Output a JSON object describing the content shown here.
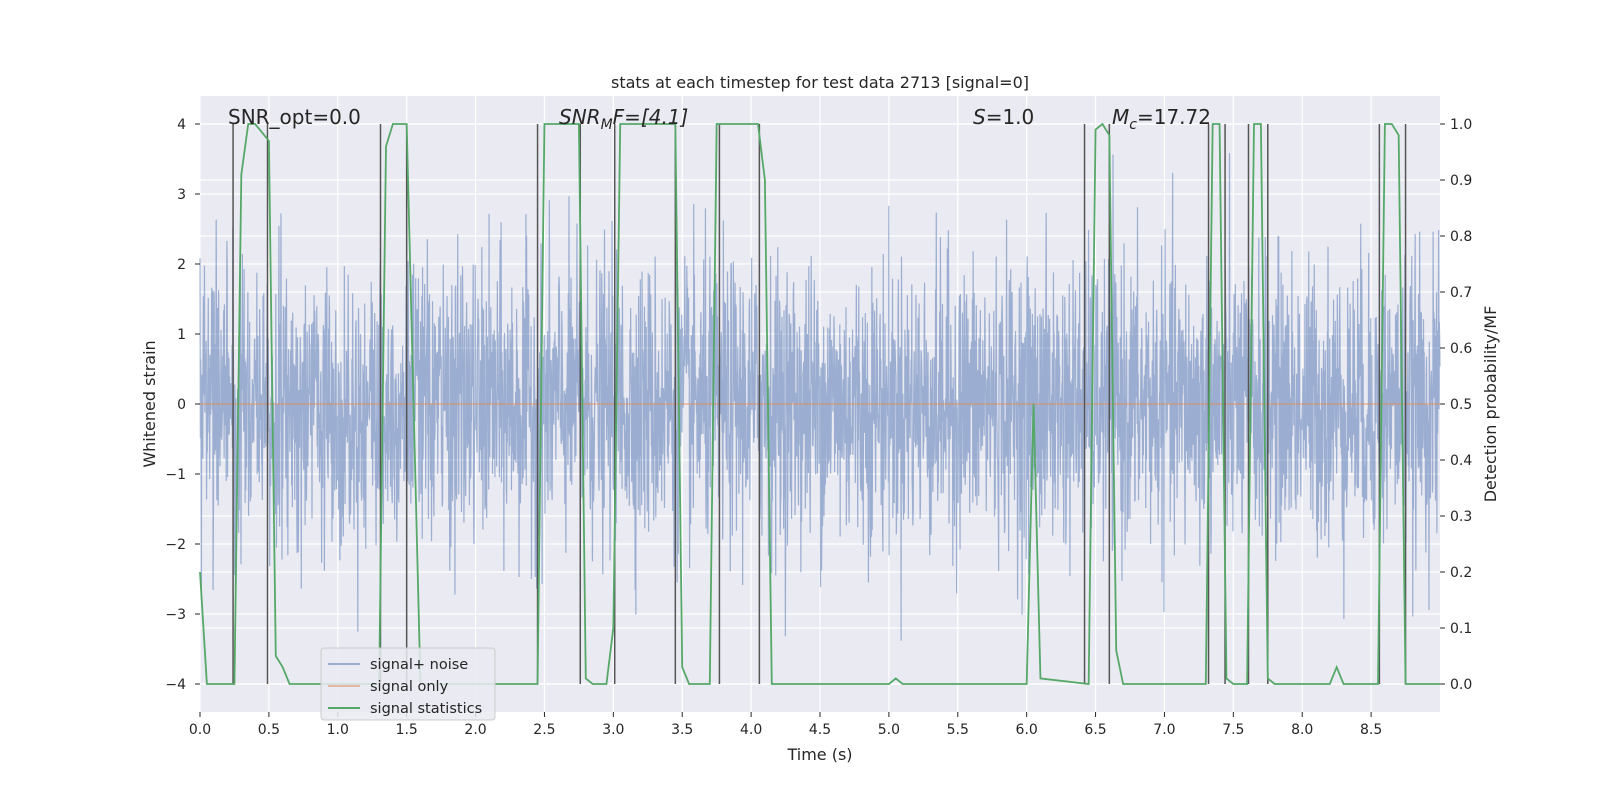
{
  "chart_data": {
    "type": "line",
    "title": "stats at each timestep for test data 2713 [signal=0]",
    "xlabel": "Time (s)",
    "ylabel": "Whitened strain",
    "y2label": "Detection probability/MF",
    "xlim": [
      0.0,
      9.0
    ],
    "ylim": [
      -4.4,
      4.4
    ],
    "y2lim": [
      -0.05,
      1.05
    ],
    "x_ticks": [
      0.0,
      0.5,
      1.0,
      1.5,
      2.0,
      2.5,
      3.0,
      3.5,
      4.0,
      4.5,
      5.0,
      5.5,
      6.0,
      6.5,
      7.0,
      7.5,
      8.0,
      8.5
    ],
    "x_tick_labels": [
      "0.0",
      "0.5",
      "1.0",
      "1.5",
      "2.0",
      "2.5",
      "3.0",
      "3.5",
      "4.0",
      "4.5",
      "5.0",
      "5.5",
      "6.0",
      "6.5",
      "7.0",
      "7.5",
      "8.0",
      "8.5"
    ],
    "y_ticks": [
      -4,
      -3,
      -2,
      -1,
      0,
      1,
      2,
      3,
      4
    ],
    "y_tick_labels": [
      "−4",
      "−3",
      "−2",
      "−1",
      "0",
      "1",
      "2",
      "3",
      "4"
    ],
    "y2_ticks": [
      0.0,
      0.1,
      0.2,
      0.3,
      0.4,
      0.5,
      0.6,
      0.7,
      0.8,
      0.9,
      1.0
    ],
    "y2_tick_labels": [
      "0.0",
      "0.1",
      "0.2",
      "0.3",
      "0.4",
      "0.5",
      "0.6",
      "0.7",
      "0.8",
      "0.9",
      "1.0"
    ],
    "grid": true,
    "legend_position": "lower-left",
    "annotations": {
      "snr_opt": "SNR_opt=0.0",
      "snr_mf_main": "SNR",
      "snr_mf_sub": "M",
      "snr_mf_rest": "F=[4.1]",
      "s_main": "S",
      "s_rest": "=1.0",
      "mc_main": "M",
      "mc_sub": "c",
      "mc_rest": "=17.72"
    },
    "series": [
      {
        "name": "signal+ noise",
        "color": "#4c72b0",
        "axis": "left",
        "noise_std": 1.0,
        "x_range": [
          0.0,
          9.0
        ]
      },
      {
        "name": "signal only",
        "color": "#dd8452",
        "axis": "left",
        "x": [
          0.0,
          9.0
        ],
        "y": [
          0.0,
          0.0
        ]
      },
      {
        "name": "signal statistics",
        "color": "#55a868",
        "axis": "right",
        "x": [
          0.0,
          0.05,
          0.25,
          0.3,
          0.35,
          0.4,
          0.5,
          0.55,
          0.6,
          0.65,
          0.7,
          0.75,
          1.3,
          1.35,
          1.4,
          1.5,
          1.6,
          1.65,
          2.45,
          2.5,
          2.75,
          2.8,
          2.85,
          2.95,
          3.0,
          3.05,
          3.1,
          3.45,
          3.5,
          3.55,
          3.6,
          3.7,
          3.75,
          3.8,
          4.05,
          4.1,
          4.15,
          4.2,
          5.0,
          5.05,
          5.1,
          5.5,
          5.7,
          6.0,
          6.05,
          6.1,
          6.45,
          6.5,
          6.55,
          6.6,
          6.65,
          6.7,
          7.3,
          7.35,
          7.4,
          7.45,
          7.5,
          7.6,
          7.65,
          7.7,
          7.75,
          7.8,
          8.15,
          8.2,
          8.25,
          8.3,
          8.4,
          8.55,
          8.6,
          8.65,
          8.7,
          8.75,
          8.8,
          8.9,
          9.0
        ],
        "y": [
          0.2,
          0.0,
          0.0,
          0.91,
          1.0,
          1.0,
          0.97,
          0.05,
          0.03,
          0.0,
          0.0,
          0.0,
          0.0,
          0.96,
          1.0,
          1.0,
          0.0,
          0.0,
          0.0,
          1.0,
          1.0,
          0.01,
          0.0,
          0.0,
          0.1,
          1.0,
          1.0,
          1.0,
          0.03,
          0.0,
          0.0,
          0.0,
          1.0,
          1.0,
          1.0,
          0.9,
          0.0,
          0.0,
          0.0,
          0.01,
          0.0,
          0.0,
          0.0,
          0.0,
          0.5,
          0.01,
          0.0,
          0.99,
          1.0,
          0.98,
          0.06,
          0.0,
          0.0,
          1.0,
          1.0,
          0.01,
          0.0,
          0.0,
          1.0,
          1.0,
          0.01,
          0.0,
          0.0,
          0.0,
          0.03,
          0.0,
          0.0,
          0.0,
          1.0,
          1.0,
          0.98,
          0.0,
          0.0,
          0.0,
          0.0
        ]
      }
    ],
    "vlines": {
      "color": "#555555",
      "x": [
        0.24,
        0.49,
        1.31,
        1.5,
        2.45,
        2.76,
        3.01,
        3.45,
        3.77,
        4.06,
        6.42,
        6.6,
        7.32,
        7.44,
        7.61,
        7.75,
        8.56,
        8.75
      ],
      "y_top": [
        4.0,
        4.0,
        4.0,
        4.0,
        4.0,
        4.0,
        4.0,
        4.0,
        4.0,
        4.0,
        4.0,
        4.0,
        4.0,
        4.0,
        4.0,
        4.0,
        4.0,
        4.0
      ],
      "y_bottom": [
        -4.0,
        -4.0,
        -4.0,
        -4.0,
        -4.0,
        -4.0,
        -4.0,
        -4.0,
        -4.0,
        -4.0,
        -4.0,
        -4.0,
        -4.0,
        -4.0,
        -4.0,
        -4.0,
        -4.0,
        -4.0
      ]
    }
  }
}
